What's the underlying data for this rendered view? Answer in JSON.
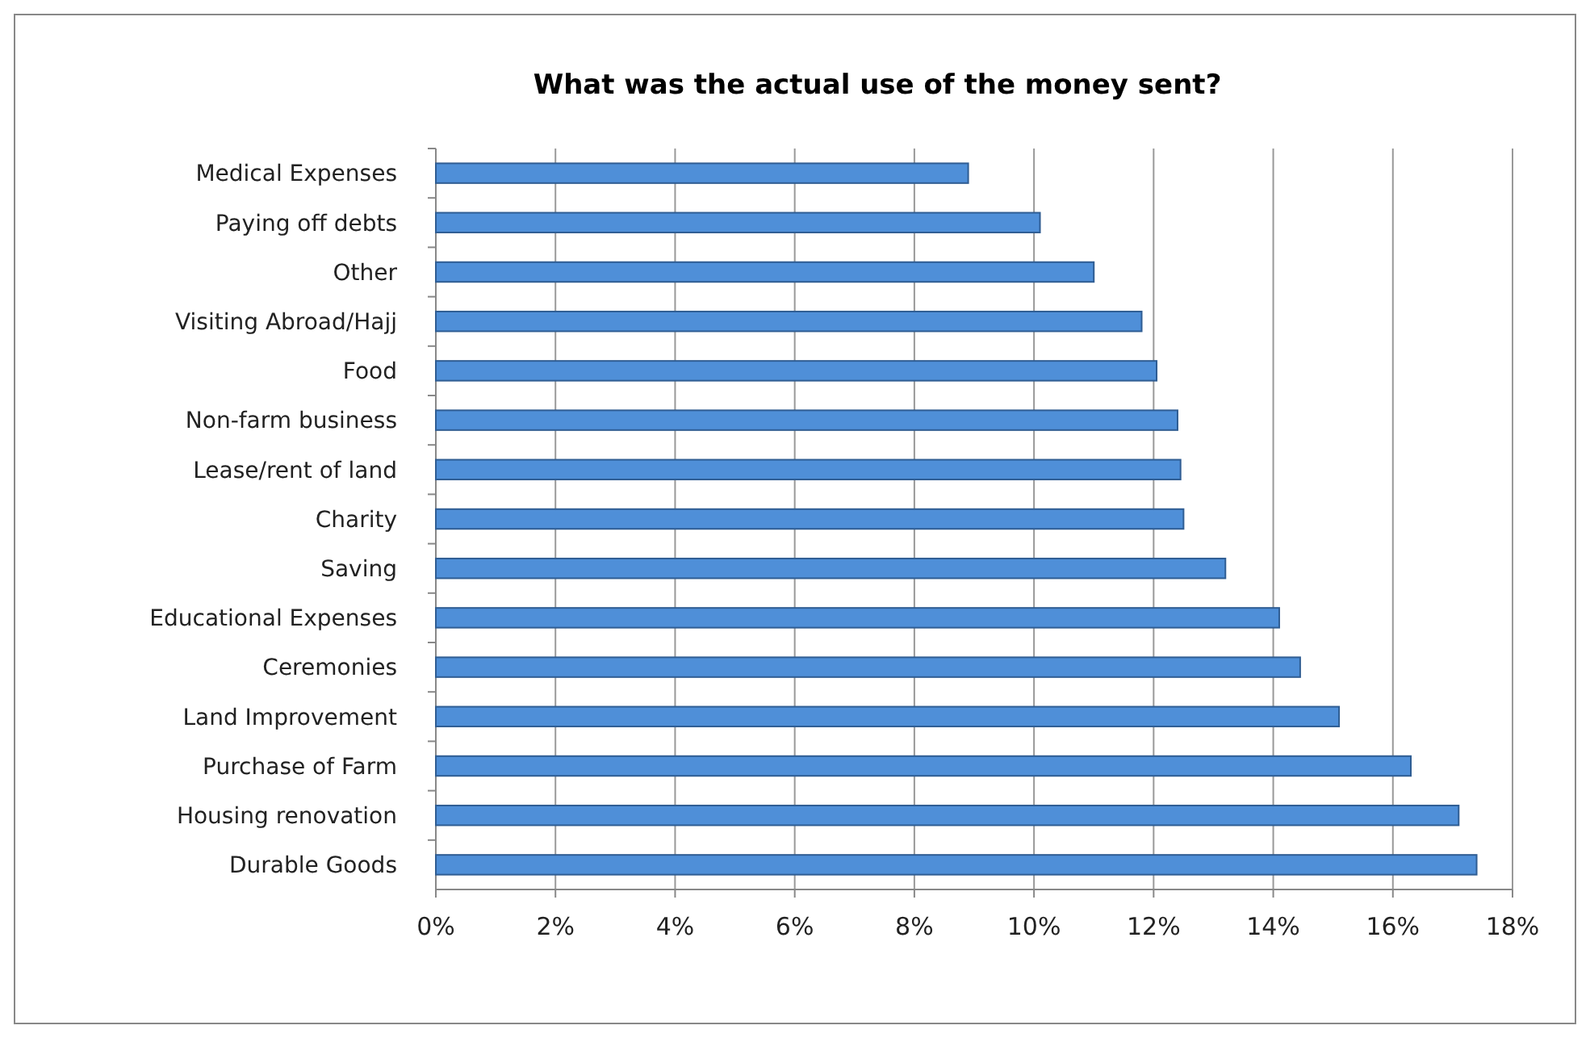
{
  "chart_data": {
    "type": "bar",
    "orientation": "horizontal",
    "title": "What was the actual use of the money sent?",
    "categories": [
      "Medical Expenses",
      "Paying off debts",
      "Other",
      "Visiting Abroad/Hajj",
      "Food",
      "Non-farm business",
      "Lease/rent of land",
      "Charity",
      "Saving",
      "Educational Expenses",
      "Ceremonies",
      "Land Improvement",
      "Purchase of Farm",
      "Housing renovation",
      "Durable Goods"
    ],
    "values": [
      8.9,
      10.1,
      11.0,
      11.8,
      12.05,
      12.4,
      12.45,
      12.5,
      13.2,
      14.1,
      14.45,
      15.1,
      16.3,
      17.1,
      17.4
    ],
    "color": "#4f8fd8",
    "xlim": [
      0,
      18
    ],
    "xticks": [
      {
        "value": 0,
        "label": "0%"
      },
      {
        "value": 2,
        "label": "2%"
      },
      {
        "value": 4,
        "label": "4%"
      },
      {
        "value": 6,
        "label": "6%"
      },
      {
        "value": 8,
        "label": "8%"
      },
      {
        "value": 10,
        "label": "10%"
      },
      {
        "value": 12,
        "label": "12%"
      },
      {
        "value": 14,
        "label": "14%"
      },
      {
        "value": 16,
        "label": "16%"
      },
      {
        "value": 18,
        "label": "18%"
      }
    ],
    "grid": "x"
  }
}
